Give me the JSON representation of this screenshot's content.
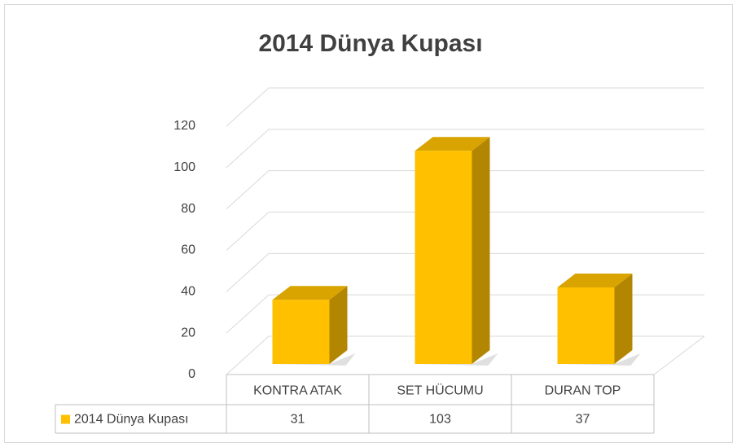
{
  "chart_data": {
    "type": "bar3d",
    "title": "2014 Dünya Kupası",
    "categories": [
      "KONTRA ATAK",
      "SET HÜCUMU",
      "DURAN TOP"
    ],
    "series": [
      {
        "name": "2014 Dünya Kupası",
        "color": "#ffc000",
        "values": [
          31,
          103,
          37
        ]
      }
    ],
    "ylim": [
      0,
      120
    ],
    "yticks": [
      0,
      20,
      40,
      60,
      80,
      100,
      120
    ],
    "grid": true,
    "data_table": true
  }
}
